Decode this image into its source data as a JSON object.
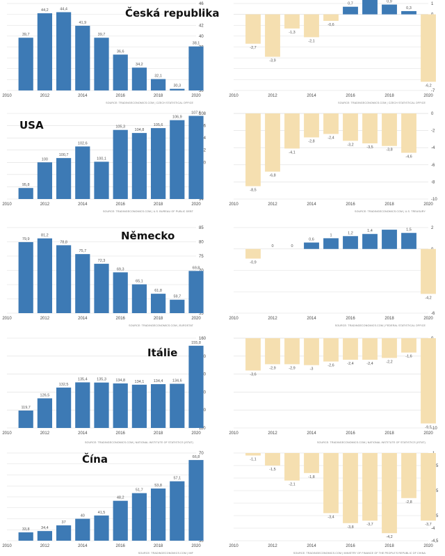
{
  "chart_data": [
    {
      "id": "cz-debt",
      "type": "bar",
      "title": "Česká republika",
      "x": [
        2010,
        2011,
        2012,
        2013,
        2014,
        2015,
        2016,
        2017,
        2018,
        2019,
        2020
      ],
      "values": [
        null,
        39.7,
        44.2,
        44.4,
        41.9,
        39.7,
        36.6,
        34.2,
        32.1,
        30.3,
        38.1
      ],
      "ylim": [
        30,
        46
      ],
      "yticks": [
        30,
        32,
        34,
        36,
        38,
        40,
        42,
        44,
        46
      ],
      "xticks": [
        2010,
        2012,
        2014,
        2016,
        2018,
        2020
      ],
      "source": "SOURCE: TRADINGECONOMICS.COM | CZECH STATISTICAL OFFICE"
    },
    {
      "id": "cz-balance",
      "type": "bar",
      "title": "",
      "x": [
        2010,
        2011,
        2012,
        2013,
        2014,
        2015,
        2016,
        2017,
        2018,
        2019,
        2020
      ],
      "values": [
        null,
        -2.7,
        -3.9,
        -1.3,
        -2.1,
        -0.6,
        0.7,
        1.5,
        0.9,
        0.3,
        -6.2
      ],
      "ylim": [
        -7,
        1
      ],
      "yticks": [
        -7,
        -6,
        -5,
        -4,
        -3,
        -2,
        -1,
        0,
        1
      ],
      "xticks": [
        2010,
        2012,
        2014,
        2016,
        2018,
        2020
      ],
      "source": "SOURCE: TRADINGECONOMICS.COM | CZECH STATISTICAL OFFICE"
    },
    {
      "id": "us-debt",
      "type": "bar",
      "title": "USA",
      "x": [
        2010,
        2011,
        2012,
        2013,
        2014,
        2015,
        2016,
        2017,
        2018,
        2019,
        2020
      ],
      "values": [
        null,
        95.8,
        100,
        100.7,
        102.6,
        100.1,
        105.3,
        104.8,
        105.6,
        106.9,
        107.6
      ],
      "ylim": [
        94,
        108
      ],
      "yticks": [
        94,
        96,
        98,
        100,
        102,
        104,
        106,
        108
      ],
      "xticks": [
        2010,
        2012,
        2014,
        2016,
        2018,
        2020
      ],
      "source": "SOURCE: TRADINGECONOMICS.COM | U.S. BUREAU OF PUBLIC DEBT"
    },
    {
      "id": "us-balance",
      "type": "bar",
      "title": "",
      "x": [
        2010,
        2011,
        2012,
        2013,
        2014,
        2015,
        2016,
        2017,
        2018,
        2019,
        2020
      ],
      "values": [
        null,
        -8.5,
        -6.8,
        -4.1,
        -2.8,
        -2.4,
        -3.2,
        -3.5,
        -3.8,
        -4.6,
        null
      ],
      "ylim": [
        -10,
        0
      ],
      "yticks": [
        -10,
        -8,
        -6,
        -4,
        -2,
        0
      ],
      "xticks": [
        2010,
        2012,
        2014,
        2016,
        2018,
        2020
      ],
      "source": "SOURCE: TRADINGECONOMICS.COM | U.S. TREASURY"
    },
    {
      "id": "de-debt",
      "type": "bar",
      "title": "Německo",
      "x": [
        2010,
        2011,
        2012,
        2013,
        2014,
        2015,
        2016,
        2017,
        2018,
        2019,
        2020
      ],
      "values": [
        null,
        79.9,
        81.2,
        78.8,
        75.7,
        72.3,
        69.3,
        65.1,
        61.8,
        59.7,
        69.8
      ],
      "ylim": [
        55,
        85
      ],
      "yticks": [
        55,
        60,
        65,
        70,
        75,
        80,
        85
      ],
      "xticks": [
        2010,
        2012,
        2014,
        2016,
        2018,
        2020
      ],
      "source": "SOURCE: TRADINGECONOMICS.COM | EUROSTAT"
    },
    {
      "id": "de-balance",
      "type": "bar",
      "title": "",
      "x": [
        2010,
        2011,
        2012,
        2013,
        2014,
        2015,
        2016,
        2017,
        2018,
        2019,
        2020
      ],
      "values": [
        null,
        -0.9,
        0,
        0,
        0.6,
        1,
        1.2,
        1.4,
        1.8,
        1.5,
        -4.2
      ],
      "labels": [
        "",
        "-0.9",
        "0",
        "0",
        "0.6",
        "1",
        "1.2",
        "1.4",
        "",
        "1.5",
        "-4.2"
      ],
      "ylim": [
        -6,
        2
      ],
      "yticks": [
        -6,
        -4,
        -2,
        0,
        2
      ],
      "xticks": [
        2010,
        2012,
        2014,
        2016,
        2018,
        2020
      ],
      "source": "SOURCE: TRADINGECONOMICS.COM | FEDERAL STATISTICAL OFFICE"
    },
    {
      "id": "it-debt",
      "type": "bar",
      "title": "Itálie",
      "x": [
        2010,
        2011,
        2012,
        2013,
        2014,
        2015,
        2016,
        2017,
        2018,
        2019,
        2020
      ],
      "values": [
        null,
        119.7,
        126.5,
        132.5,
        135.4,
        135.3,
        134.8,
        134.1,
        134.4,
        134.6,
        155.8
      ],
      "ylim": [
        110,
        160
      ],
      "yticks": [
        110,
        120,
        130,
        140,
        150,
        160
      ],
      "xticks": [
        2010,
        2012,
        2014,
        2016,
        2018,
        2020
      ],
      "source": "SOURCE: TRADINGECONOMICS.COM | NATIONAL INSTITUTE OF STATISTICS (ISTAT)"
    },
    {
      "id": "it-balance",
      "type": "bar",
      "title": "",
      "x": [
        2010,
        2011,
        2012,
        2013,
        2014,
        2015,
        2016,
        2017,
        2018,
        2019,
        2020
      ],
      "values": [
        null,
        -3.6,
        -2.9,
        -2.9,
        -3,
        -2.6,
        -2.4,
        -2.4,
        -2.2,
        -1.6,
        -9.5
      ],
      "ylim": [
        -10,
        0
      ],
      "yticks": [
        -10,
        -8,
        -6,
        -4,
        -2,
        0
      ],
      "xticks": [
        2010,
        2012,
        2014,
        2016,
        2018,
        2020
      ],
      "source": "SOURCE: TRADINGECONOMICS.COM | NATIONAL INSTITUTE OF STATISTICS (ISTAT)"
    },
    {
      "id": "cn-debt",
      "type": "bar",
      "title": "Čína",
      "x": [
        2010,
        2011,
        2012,
        2013,
        2014,
        2015,
        2016,
        2017,
        2018,
        2019,
        2020
      ],
      "values": [
        null,
        33.8,
        34.4,
        37,
        40,
        41.5,
        48.2,
        51.7,
        53.8,
        57.1,
        66.8
      ],
      "ylim": [
        30,
        70
      ],
      "yticks": [
        30,
        35,
        40,
        45,
        50,
        55,
        60,
        65,
        70
      ],
      "xticks": [
        2010,
        2012,
        2014,
        2016,
        2018,
        2020
      ],
      "source": "SOURCE: TRADINGECONOMICS.COM | IMF"
    },
    {
      "id": "cn-balance",
      "type": "bar",
      "title": "",
      "x": [
        2010,
        2011,
        2012,
        2013,
        2014,
        2015,
        2016,
        2017,
        2018,
        2019,
        2020
      ],
      "values": [
        null,
        -1.1,
        -1.5,
        -2.1,
        -1.8,
        -3.4,
        -3.8,
        -3.7,
        -4.2,
        -2.8,
        -3.7
      ],
      "ylim": [
        -4.5,
        -1
      ],
      "yticks": [
        -4.5,
        -4,
        -3.5,
        -3,
        -2.5,
        -2,
        -1.5,
        -1
      ],
      "xticks": [
        2010,
        2012,
        2014,
        2016,
        2018,
        2020
      ],
      "source": "SOURCE: TRADINGECONOMICS.COM | MINISTRY OF FINANCE OF THE PEOPLE'S REPUBLIC OF CHINA"
    }
  ],
  "colors": {
    "positive": "#3d7ab5",
    "negative": "#f5dfb0",
    "negative_label": "#666666"
  }
}
